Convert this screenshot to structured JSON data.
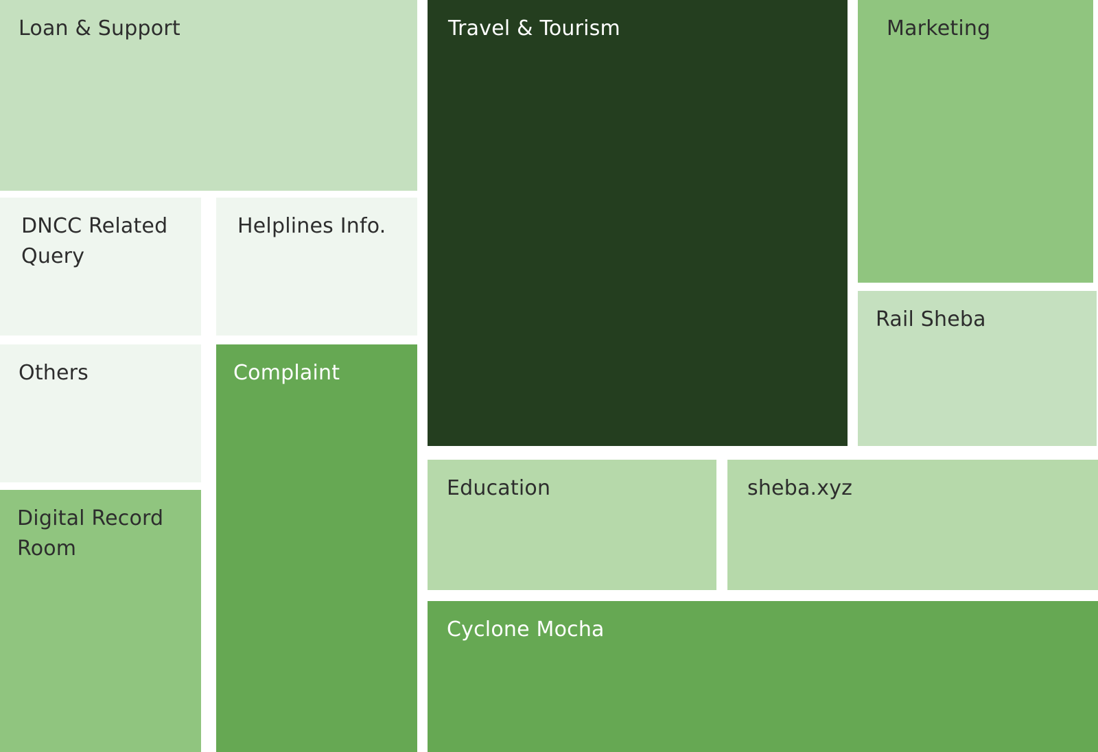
{
  "chart_data": {
    "type": "treemap",
    "tiles": [
      {
        "label": "Loan & Support",
        "color": "#c5e0bf",
        "text_color": "#2d2d2d"
      },
      {
        "label": "DNCC Related Query",
        "color": "#eff6ef",
        "text_color": "#2d2d2d"
      },
      {
        "label": "Helplines Info.",
        "color": "#eff6ef",
        "text_color": "#2d2d2d"
      },
      {
        "label": "Others",
        "color": "#eff6ef",
        "text_color": "#2d2d2d"
      },
      {
        "label": "Complaint",
        "color": "#66a853",
        "text_color": "#ffffff"
      },
      {
        "label": "Digital Record Room",
        "color": "#90c57f",
        "text_color": "#2d2d2d"
      },
      {
        "label": "Travel & Tourism",
        "color": "#243e1f",
        "text_color": "#ffffff"
      },
      {
        "label": "Marketing",
        "color": "#90c57f",
        "text_color": "#2d2d2d"
      },
      {
        "label": "Rail Sheba",
        "color": "#c5e0bf",
        "text_color": "#2d2d2d"
      },
      {
        "label": "Education",
        "color": "#b6d9aa",
        "text_color": "#2d2d2d"
      },
      {
        "label": "sheba.xyz",
        "color": "#b6d9aa",
        "text_color": "#2d2d2d"
      },
      {
        "label": "Cyclone Mocha",
        "color": "#66a853",
        "text_color": "#ffffff"
      }
    ]
  }
}
